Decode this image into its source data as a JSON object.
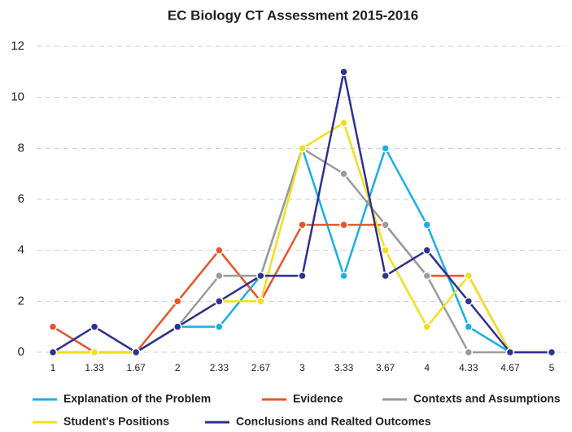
{
  "chart_data": {
    "type": "line",
    "title": "EC Biology CT Assessment 2015-2016",
    "categories": [
      "1",
      "1.33",
      "1.67",
      "2",
      "2.33",
      "2.67",
      "3",
      "3.33",
      "3.67",
      "4",
      "4.33",
      "4.67",
      "5"
    ],
    "series": [
      {
        "name": "Explanation of the Problem",
        "color": "#1aafe6",
        "values": [
          0,
          0,
          0,
          1,
          1,
          3,
          8,
          3,
          8,
          5,
          1,
          0,
          0
        ]
      },
      {
        "name": "Evidence",
        "color": "#e8542a",
        "values": [
          1,
          0,
          0,
          2,
          4,
          2,
          5,
          5,
          5,
          3,
          3,
          0,
          0
        ]
      },
      {
        "name": "Contexts and Assumptions",
        "color": "#9b9b9b",
        "values": [
          0,
          0,
          0,
          1,
          3,
          3,
          8,
          7,
          5,
          3,
          0,
          0,
          0
        ]
      },
      {
        "name": "Student's Positions",
        "color": "#f5de1a",
        "values": [
          0,
          0,
          0,
          1,
          2,
          2,
          8,
          9,
          4,
          1,
          3,
          0,
          0
        ]
      },
      {
        "name": "Conclusions and Realted Outcomes",
        "color": "#2e3192",
        "values": [
          0,
          1,
          0,
          1,
          2,
          3,
          3,
          11,
          3,
          4,
          2,
          0,
          0
        ]
      }
    ],
    "ylim": [
      0,
      12
    ],
    "yticks": [
      0,
      2,
      4,
      6,
      8,
      10,
      12
    ],
    "grid": true,
    "legend": "bottom"
  }
}
